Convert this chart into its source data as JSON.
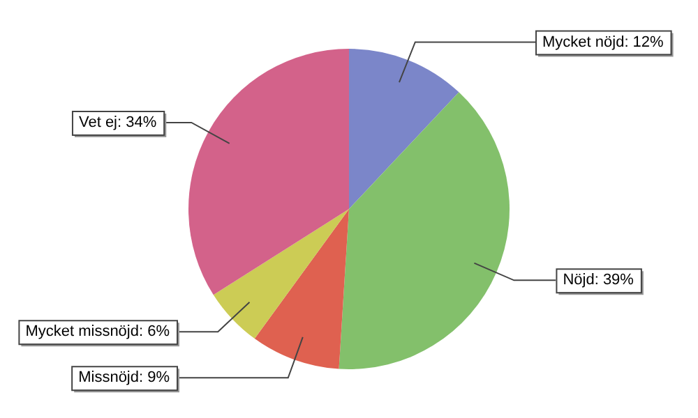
{
  "chart_data": {
    "type": "pie",
    "categories": [
      "Mycket nöjd",
      "Nöjd",
      "Missnöjd",
      "Mycket missnöjd",
      "Vet ej"
    ],
    "values": [
      12,
      39,
      9,
      6,
      34
    ],
    "colors": [
      "#7b86c9",
      "#83c06b",
      "#df6150",
      "#cccc55",
      "#d3628a"
    ],
    "value_labels": [
      "12%",
      "39%",
      "9%",
      "6%",
      "34%"
    ],
    "legend": false
  }
}
